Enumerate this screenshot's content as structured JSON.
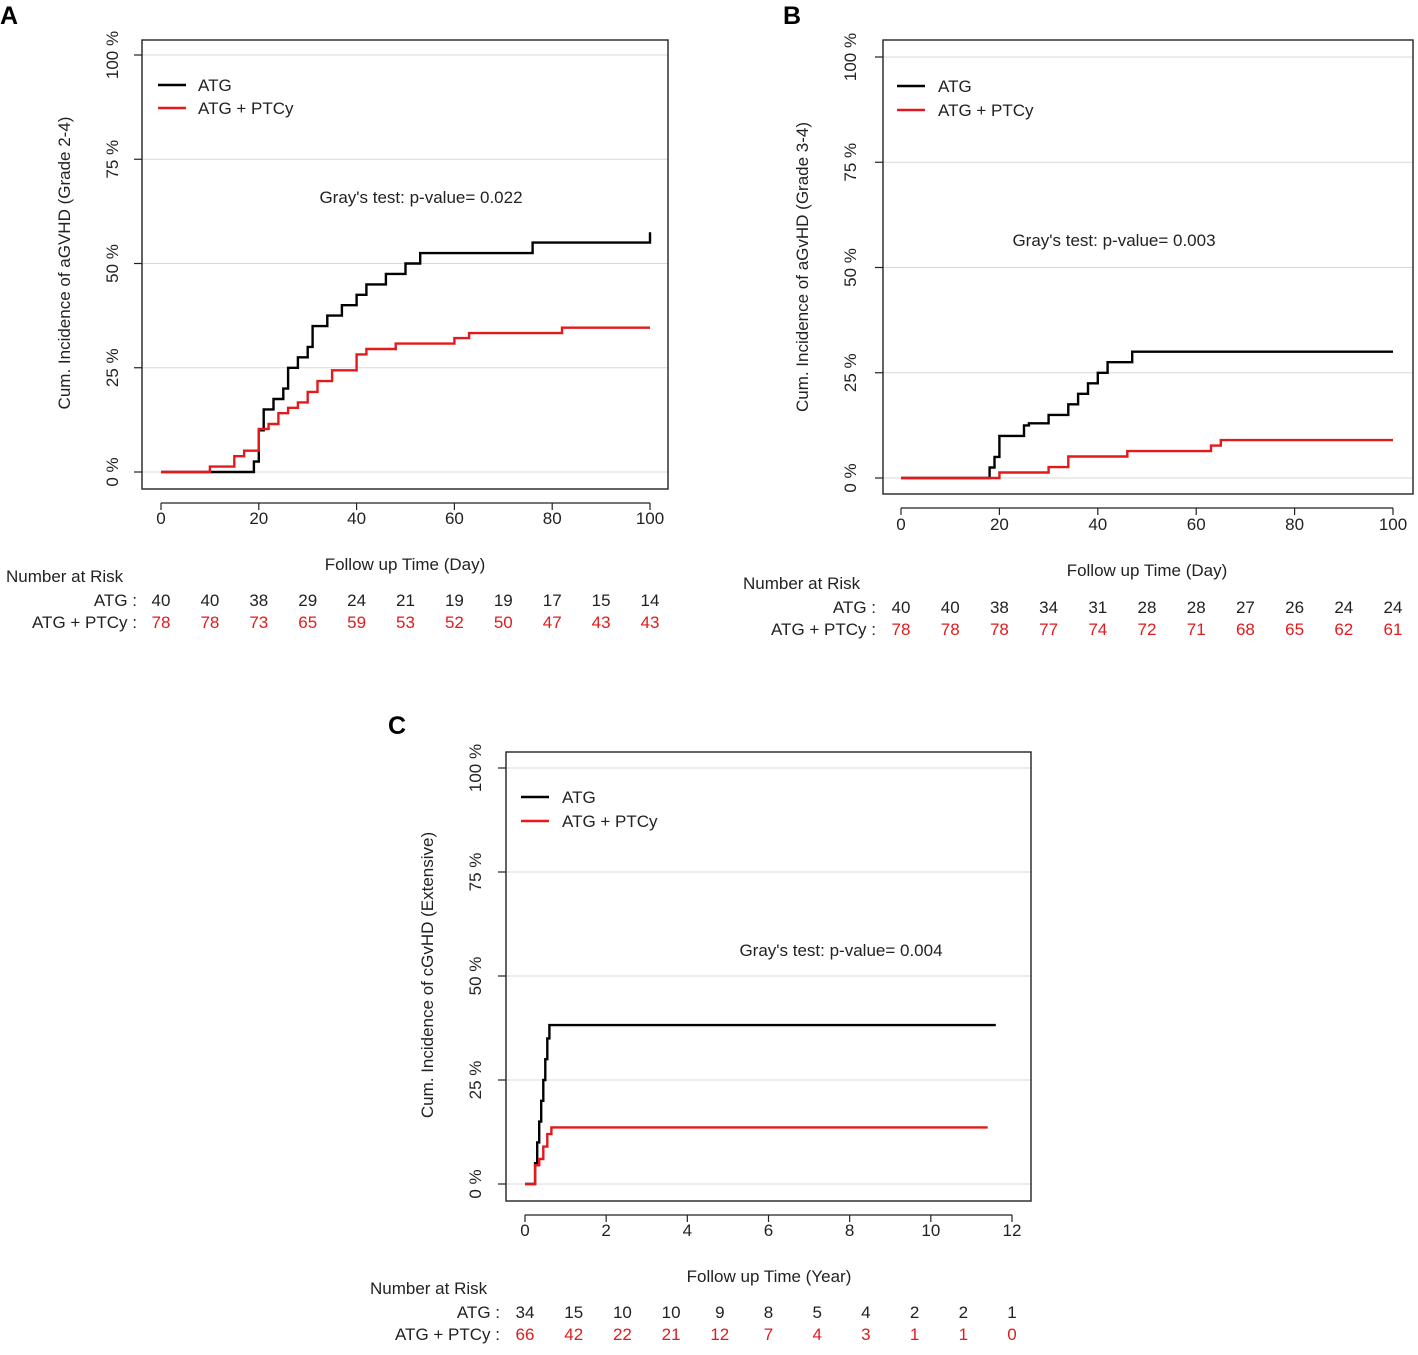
{
  "chart_data": [
    {
      "panel": "A",
      "type": "line",
      "title": "",
      "xlabel": "Follow up Time (Day)",
      "ylabel": "Cum. Incidence of aGVHD (Grade 2-4)",
      "xlim": [
        0,
        100
      ],
      "ylim": [
        0,
        100
      ],
      "xticks": [
        "0",
        "20",
        "40",
        "60",
        "80",
        "100"
      ],
      "yticks": [
        "0 %",
        "25 %",
        "50 %",
        "75 %",
        "100 %"
      ],
      "legend": [
        "ATG",
        "ATG + PTCy"
      ],
      "annotation": "Gray's test: p-value= 0.022",
      "series": [
        {
          "name": "ATG",
          "color": "#000000",
          "x": [
            0,
            18,
            19,
            20,
            21,
            22,
            23,
            24,
            25,
            26,
            28,
            30,
            31,
            32,
            34,
            35,
            37,
            40,
            42,
            46,
            50,
            53,
            76,
            100
          ],
          "y": [
            0,
            0,
            2.5,
            10,
            15,
            15,
            17.5,
            17.5,
            20,
            25,
            27.5,
            30,
            35,
            35,
            37.5,
            37.5,
            40,
            42.5,
            45,
            47.5,
            50,
            52.5,
            55,
            57.5
          ]
        },
        {
          "name": "ATG + PTCy",
          "color": "#e31a1c",
          "x": [
            0,
            10,
            13,
            15,
            17,
            20,
            22,
            24,
            26,
            28,
            30,
            32,
            35,
            40,
            42,
            44,
            48,
            60,
            63,
            82,
            100
          ],
          "y": [
            0,
            1.3,
            1.3,
            3.8,
            5.1,
            10.3,
            11.5,
            14.1,
            15.4,
            16.7,
            19.2,
            21.8,
            24.4,
            28.2,
            29.5,
            29.5,
            30.8,
            32.1,
            33.3,
            34.6,
            34.6
          ]
        }
      ],
      "risk_table": {
        "header": "Number at Risk",
        "rows": [
          {
            "label": "ATG :",
            "color": "#222222",
            "values": [
              "40",
              "40",
              "38",
              "29",
              "24",
              "21",
              "19",
              "19",
              "17",
              "15",
              "14"
            ]
          },
          {
            "label": "ATG + PTCy :",
            "color": "#e31a1c",
            "values": [
              "78",
              "78",
              "73",
              "65",
              "59",
              "53",
              "52",
              "50",
              "47",
              "43",
              "43"
            ]
          }
        ]
      }
    },
    {
      "panel": "B",
      "type": "line",
      "title": "",
      "xlabel": "Follow up Time (Day)",
      "ylabel": "Cum. Incidence of aGvHD (Grade 3-4)",
      "xlim": [
        0,
        100
      ],
      "ylim": [
        0,
        100
      ],
      "xticks": [
        "0",
        "20",
        "40",
        "60",
        "80",
        "100"
      ],
      "yticks": [
        "0 %",
        "25 %",
        "50 %",
        "75 %",
        "100 %"
      ],
      "legend": [
        "ATG",
        "ATG + PTCy"
      ],
      "annotation": "Gray's test: p-value= 0.003",
      "series": [
        {
          "name": "ATG",
          "color": "#000000",
          "x": [
            0,
            18,
            19,
            20,
            22,
            25,
            26,
            30,
            34,
            36,
            38,
            40,
            42,
            47,
            100
          ],
          "y": [
            0,
            2.5,
            5,
            10,
            10,
            12.5,
            13,
            15,
            17.5,
            20,
            22.5,
            25,
            27.5,
            30,
            30
          ]
        },
        {
          "name": "ATG + PTCy",
          "color": "#e31a1c",
          "x": [
            0,
            20,
            21,
            30,
            34,
            46,
            63,
            65,
            100
          ],
          "y": [
            0,
            1.3,
            1.3,
            2.6,
            5.1,
            6.4,
            7.7,
            9,
            9
          ]
        }
      ],
      "risk_table": {
        "header": "Number at Risk",
        "rows": [
          {
            "label": "ATG :",
            "color": "#222222",
            "values": [
              "40",
              "40",
              "38",
              "34",
              "31",
              "28",
              "28",
              "27",
              "26",
              "24",
              "24"
            ]
          },
          {
            "label": "ATG + PTCy :",
            "color": "#e31a1c",
            "values": [
              "78",
              "78",
              "78",
              "77",
              "74",
              "72",
              "71",
              "68",
              "65",
              "62",
              "61"
            ]
          }
        ]
      }
    },
    {
      "panel": "C",
      "type": "line",
      "title": "",
      "xlabel": "Follow up Time (Year)",
      "ylabel": "Cum. Incidence of cGvHD (Extensive)",
      "xlim": [
        0,
        12
      ],
      "ylim": [
        0,
        100
      ],
      "xticks": [
        "0",
        "2",
        "4",
        "6",
        "8",
        "10",
        "12"
      ],
      "yticks": [
        "0 %",
        "25 %",
        "50 %",
        "75 %",
        "100 %"
      ],
      "legend": [
        "ATG",
        "ATG + PTCy"
      ],
      "annotation": "Gray's test: p-value= 0.004",
      "series": [
        {
          "name": "ATG",
          "color": "#000000",
          "x": [
            0,
            0.25,
            0.3,
            0.35,
            0.4,
            0.45,
            0.5,
            0.55,
            0.6,
            11.6
          ],
          "y": [
            0,
            5,
            10,
            15,
            20,
            25,
            30,
            35,
            38.2,
            38.2
          ]
        },
        {
          "name": "ATG + PTCy",
          "color": "#e31a1c",
          "x": [
            0,
            0.25,
            0.35,
            0.45,
            0.55,
            0.65,
            11.4
          ],
          "y": [
            0,
            4.5,
            6,
            9,
            12,
            13.6,
            13.6
          ]
        }
      ],
      "risk_table": {
        "header": "Number at Risk",
        "rows": [
          {
            "label": "ATG :",
            "color": "#222222",
            "values": [
              "34",
              "15",
              "10",
              "10",
              "9",
              "8",
              "5",
              "4",
              "2",
              "2",
              "1"
            ]
          },
          {
            "label": "ATG + PTCy :",
            "color": "#e31a1c",
            "values": [
              "66",
              "42",
              "22",
              "21",
              "12",
              "7",
              "4",
              "3",
              "1",
              "1",
              "0"
            ]
          }
        ]
      }
    }
  ]
}
